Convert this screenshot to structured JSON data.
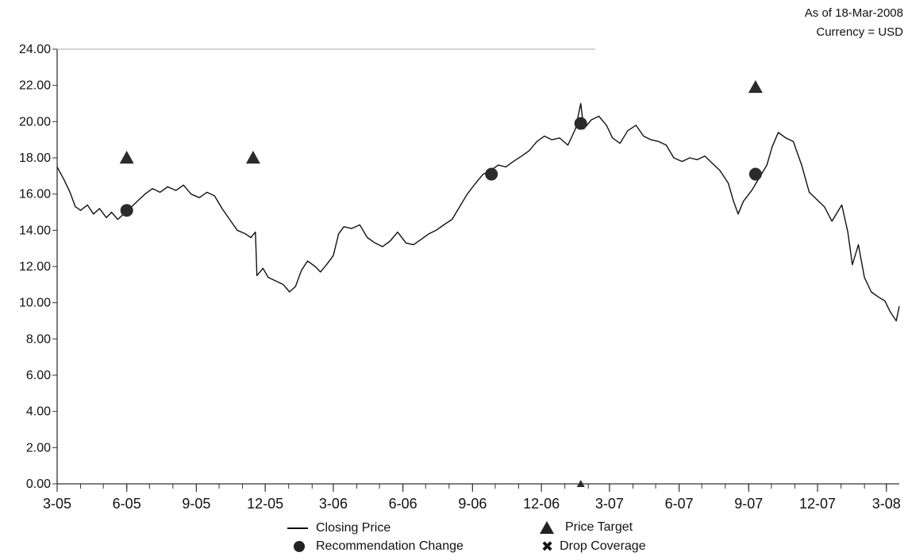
{
  "header": {
    "as_of": "As of 18-Mar-2008",
    "currency": "Currency = USD"
  },
  "colors": {
    "line": "#111111",
    "marker": "#2b2b2b",
    "axis": "#333333"
  },
  "legend": {
    "closing_price": "Closing Price",
    "price_target": "Price Target",
    "recommendation_change": "Recommendation Change",
    "drop_coverage": "Drop Coverage"
  },
  "chart_data": {
    "type": "line",
    "title": "",
    "xlabel": "",
    "ylabel": "",
    "ylim": [
      0,
      24
    ],
    "xlim": [
      "2005-03-01",
      "2008-03-18"
    ],
    "yticks": [
      "0.00",
      "2.00",
      "4.00",
      "6.00",
      "8.00",
      "10.00",
      "12.00",
      "14.00",
      "16.00",
      "18.00",
      "20.00",
      "22.00",
      "24.00"
    ],
    "xtick_labels": [
      "3-05",
      "6-05",
      "9-05",
      "12-05",
      "3-06",
      "6-06",
      "9-06",
      "12-06",
      "3-07",
      "6-07",
      "9-07",
      "12-07",
      "3-08"
    ],
    "xtick_dates": [
      "2005-03-01",
      "2005-06-01",
      "2005-09-01",
      "2005-12-01",
      "2006-03-01",
      "2006-06-01",
      "2006-09-01",
      "2006-12-01",
      "2007-03-01",
      "2007-06-01",
      "2007-09-01",
      "2007-12-01",
      "2008-03-01"
    ],
    "grid": false,
    "legend_position": "bottom",
    "series": [
      {
        "name": "Closing Price",
        "points": [
          [
            "2005-03-01",
            17.5
          ],
          [
            "2005-03-10",
            16.8
          ],
          [
            "2005-03-18",
            16.1
          ],
          [
            "2005-03-25",
            15.3
          ],
          [
            "2005-04-01",
            15.1
          ],
          [
            "2005-04-10",
            15.4
          ],
          [
            "2005-04-18",
            14.9
          ],
          [
            "2005-04-26",
            15.2
          ],
          [
            "2005-05-05",
            14.7
          ],
          [
            "2005-05-12",
            15.0
          ],
          [
            "2005-05-20",
            14.6
          ],
          [
            "2005-05-28",
            14.9
          ],
          [
            "2005-06-05",
            15.2
          ],
          [
            "2005-06-15",
            15.6
          ],
          [
            "2005-06-25",
            16.0
          ],
          [
            "2005-07-05",
            16.3
          ],
          [
            "2005-07-15",
            16.1
          ],
          [
            "2005-07-25",
            16.4
          ],
          [
            "2005-08-05",
            16.2
          ],
          [
            "2005-08-15",
            16.5
          ],
          [
            "2005-08-25",
            16.0
          ],
          [
            "2005-09-05",
            15.8
          ],
          [
            "2005-09-15",
            16.1
          ],
          [
            "2005-09-25",
            15.9
          ],
          [
            "2005-10-05",
            15.2
          ],
          [
            "2005-10-15",
            14.6
          ],
          [
            "2005-10-25",
            14.0
          ],
          [
            "2005-11-05",
            13.8
          ],
          [
            "2005-11-12",
            13.6
          ],
          [
            "2005-11-18",
            13.9
          ],
          [
            "2005-11-20",
            11.5
          ],
          [
            "2005-11-28",
            11.9
          ],
          [
            "2005-12-05",
            11.4
          ],
          [
            "2005-12-15",
            11.2
          ],
          [
            "2005-12-25",
            11.0
          ],
          [
            "2006-01-02",
            10.6
          ],
          [
            "2006-01-10",
            10.9
          ],
          [
            "2006-01-18",
            11.8
          ],
          [
            "2006-01-26",
            12.3
          ],
          [
            "2006-02-05",
            12.0
          ],
          [
            "2006-02-12",
            11.7
          ],
          [
            "2006-02-20",
            12.1
          ],
          [
            "2006-03-01",
            12.6
          ],
          [
            "2006-03-08",
            13.8
          ],
          [
            "2006-03-15",
            14.2
          ],
          [
            "2006-03-25",
            14.1
          ],
          [
            "2006-04-05",
            14.3
          ],
          [
            "2006-04-15",
            13.6
          ],
          [
            "2006-04-25",
            13.3
          ],
          [
            "2006-05-05",
            13.1
          ],
          [
            "2006-05-15",
            13.4
          ],
          [
            "2006-05-25",
            13.9
          ],
          [
            "2006-06-05",
            13.3
          ],
          [
            "2006-06-15",
            13.2
          ],
          [
            "2006-06-25",
            13.5
          ],
          [
            "2006-07-05",
            13.8
          ],
          [
            "2006-07-15",
            14.0
          ],
          [
            "2006-07-25",
            14.3
          ],
          [
            "2006-08-05",
            14.6
          ],
          [
            "2006-08-15",
            15.3
          ],
          [
            "2006-08-25",
            16.0
          ],
          [
            "2006-09-05",
            16.6
          ],
          [
            "2006-09-15",
            17.1
          ],
          [
            "2006-09-25",
            17.3
          ],
          [
            "2006-10-05",
            17.6
          ],
          [
            "2006-10-15",
            17.5
          ],
          [
            "2006-10-25",
            17.8
          ],
          [
            "2006-11-05",
            18.1
          ],
          [
            "2006-11-15",
            18.4
          ],
          [
            "2006-11-25",
            18.9
          ],
          [
            "2006-12-05",
            19.2
          ],
          [
            "2006-12-15",
            19.0
          ],
          [
            "2006-12-25",
            19.1
          ],
          [
            "2007-01-05",
            18.7
          ],
          [
            "2007-01-15",
            19.6
          ],
          [
            "2007-01-22",
            21.0
          ],
          [
            "2007-01-26",
            19.6
          ],
          [
            "2007-02-05",
            20.1
          ],
          [
            "2007-02-15",
            20.3
          ],
          [
            "2007-02-25",
            19.8
          ],
          [
            "2007-03-05",
            19.1
          ],
          [
            "2007-03-15",
            18.8
          ],
          [
            "2007-03-25",
            19.5
          ],
          [
            "2007-04-05",
            19.8
          ],
          [
            "2007-04-15",
            19.2
          ],
          [
            "2007-04-25",
            19.0
          ],
          [
            "2007-05-05",
            18.9
          ],
          [
            "2007-05-15",
            18.7
          ],
          [
            "2007-05-25",
            18.0
          ],
          [
            "2007-06-05",
            17.8
          ],
          [
            "2007-06-15",
            18.0
          ],
          [
            "2007-06-25",
            17.9
          ],
          [
            "2007-07-05",
            18.1
          ],
          [
            "2007-07-15",
            17.7
          ],
          [
            "2007-07-25",
            17.3
          ],
          [
            "2007-08-05",
            16.6
          ],
          [
            "2007-08-12",
            15.6
          ],
          [
            "2007-08-18",
            14.9
          ],
          [
            "2007-08-25",
            15.6
          ],
          [
            "2007-09-05",
            16.2
          ],
          [
            "2007-09-15",
            16.9
          ],
          [
            "2007-09-25",
            17.6
          ],
          [
            "2007-10-02",
            18.6
          ],
          [
            "2007-10-10",
            19.4
          ],
          [
            "2007-10-20",
            19.1
          ],
          [
            "2007-10-30",
            18.9
          ],
          [
            "2007-11-10",
            17.6
          ],
          [
            "2007-11-20",
            16.1
          ],
          [
            "2007-11-30",
            15.7
          ],
          [
            "2007-12-10",
            15.3
          ],
          [
            "2007-12-20",
            14.5
          ],
          [
            "2008-01-02",
            15.4
          ],
          [
            "2008-01-10",
            13.9
          ],
          [
            "2008-01-16",
            12.1
          ],
          [
            "2008-01-24",
            13.2
          ],
          [
            "2008-02-01",
            11.4
          ],
          [
            "2008-02-10",
            10.6
          ],
          [
            "2008-02-20",
            10.3
          ],
          [
            "2008-02-28",
            10.1
          ],
          [
            "2008-03-06",
            9.5
          ],
          [
            "2008-03-14",
            9.0
          ],
          [
            "2008-03-18",
            9.8
          ]
        ]
      }
    ],
    "recommendation_changes": [
      [
        "2005-06-01",
        15.1
      ],
      [
        "2006-09-26",
        17.1
      ],
      [
        "2007-01-22",
        19.9
      ],
      [
        "2007-09-10",
        17.1
      ]
    ],
    "price_targets": [
      [
        "2005-06-01",
        18.0
      ],
      [
        "2005-11-15",
        18.0
      ],
      [
        "2007-09-10",
        21.9
      ],
      [
        "2007-01-22",
        0.0
      ]
    ]
  }
}
